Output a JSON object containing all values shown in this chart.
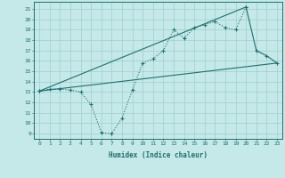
{
  "xlabel": "Humidex (Indice chaleur)",
  "xlim": [
    -0.5,
    23.5
  ],
  "ylim": [
    8.5,
    21.7
  ],
  "yticks": [
    9,
    10,
    11,
    12,
    13,
    14,
    15,
    16,
    17,
    18,
    19,
    20,
    21
  ],
  "xticks": [
    0,
    1,
    2,
    3,
    4,
    5,
    6,
    7,
    8,
    9,
    10,
    11,
    12,
    13,
    14,
    15,
    16,
    17,
    18,
    19,
    20,
    21,
    22,
    23
  ],
  "bg_color": "#c5e8e8",
  "grid_color": "#9dcfcf",
  "line_color": "#1e7070",
  "line1_x": [
    0,
    1,
    2,
    3,
    4,
    5,
    6,
    7,
    8,
    9,
    10,
    11,
    12,
    13,
    14,
    15,
    16,
    17,
    18,
    19,
    20
  ],
  "line1_y": [
    13.1,
    13.3,
    13.3,
    13.2,
    13.0,
    11.8,
    9.1,
    9.0,
    10.5,
    13.2,
    15.8,
    16.2,
    17.0,
    19.0,
    18.2,
    19.2,
    19.5,
    19.8,
    19.2,
    19.0,
    21.2
  ],
  "line2_x": [
    0,
    23
  ],
  "line2_y": [
    13.1,
    15.8
  ],
  "line3_x": [
    0,
    20,
    21,
    22,
    23
  ],
  "line3_y": [
    13.1,
    21.2,
    17.0,
    16.5,
    15.8
  ]
}
